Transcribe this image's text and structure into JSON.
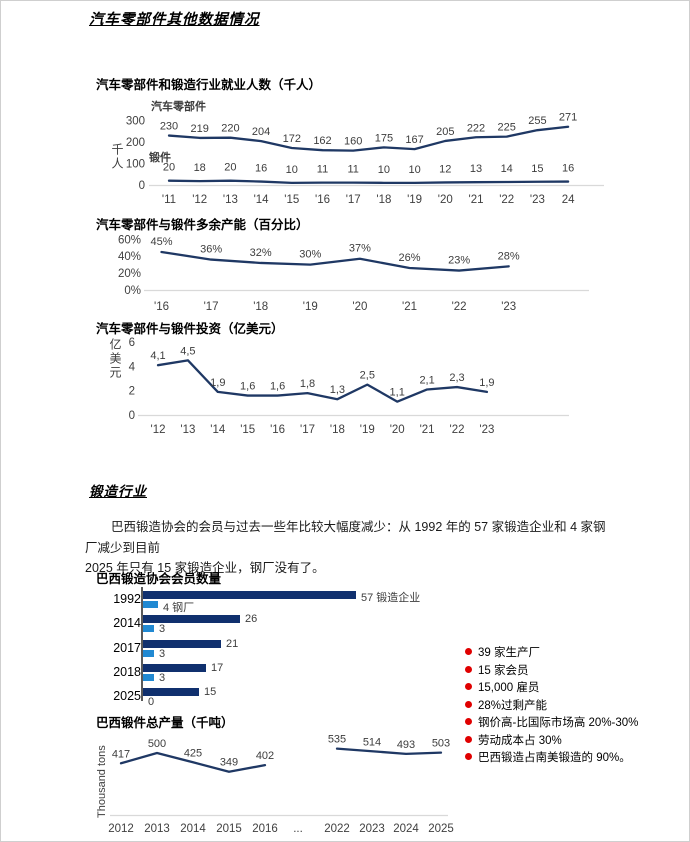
{
  "page": {
    "title": "汽车零部件其他数据情况",
    "section2_heading": "锻造行业",
    "paragraph_line1": "巴西锻造协会的会员与过去一些年比较大幅度减少：从 1992 年的 57 家锻造企业和 4 家钢厂减少到目前",
    "paragraph_line2": "2025 年只有 15 家锻造企业，钢厂没有了。"
  },
  "colors": {
    "line": "#1f3864",
    "bar_dark": "#10306e",
    "bar_light": "#2189d2",
    "bullet": "#e00000",
    "axis": "#d9d9d9",
    "tick_text": "#404040",
    "label_text": "#3d3d3d"
  },
  "chart_data": [
    {
      "id": "employment",
      "type": "line",
      "title": "汽车零部件和锻造行业就业人数（千人）",
      "ylabel": "千人",
      "xlabel": "",
      "ylim": [
        0,
        300
      ],
      "grid": false,
      "legend_position": "inline-above-lines",
      "yticks": [
        "300",
        "200",
        "100",
        "0"
      ],
      "x": [
        "'11",
        "'12",
        "'13",
        "'14",
        "'15",
        "'16",
        "'17",
        "'18",
        "'19",
        "'20",
        "'21",
        "'22",
        "'23",
        "24"
      ],
      "series": [
        {
          "name": "汽车零部件",
          "values": [
            230,
            219,
            220,
            204,
            172,
            162,
            160,
            175,
            167,
            205,
            222,
            225,
            255,
            271
          ],
          "labels": [
            "230",
            "219",
            "220",
            "204",
            "172",
            "162",
            "160",
            "175",
            "167",
            "205",
            "222",
            "225",
            "255",
            "271"
          ]
        },
        {
          "name": "锻件",
          "values": [
            20,
            18,
            20,
            16,
            10,
            11,
            11,
            10,
            10,
            12,
            13,
            14,
            15,
            16
          ],
          "labels": [
            "20",
            "18",
            "20",
            "16",
            "10",
            "11",
            "11",
            "10",
            "10",
            "12",
            "13",
            "14",
            "15",
            "16"
          ]
        }
      ]
    },
    {
      "id": "capacity",
      "type": "line",
      "title": "汽车零部件与锻件多余产能（百分比）",
      "ylabel": "",
      "xlabel": "",
      "ylim": [
        0,
        60
      ],
      "grid": false,
      "yticks": [
        "60%",
        "40%",
        "20%",
        "0%"
      ],
      "x": [
        "'16",
        "'17",
        "'18",
        "'19",
        "'20",
        "'21",
        "'22",
        "'23"
      ],
      "series": [
        {
          "name": "多余产能",
          "values": [
            45,
            36,
            32,
            30,
            37,
            26,
            23,
            28
          ],
          "labels": [
            "45%",
            "36%",
            "32%",
            "30%",
            "37%",
            "26%",
            "23%",
            "28%"
          ]
        }
      ]
    },
    {
      "id": "investment",
      "type": "line",
      "title": "汽车零部件与锻件投资（亿美元）",
      "ylabel": "亿美元",
      "xlabel": "",
      "ylim": [
        0,
        6
      ],
      "grid": false,
      "yticks": [
        "6",
        "4",
        "2",
        "0"
      ],
      "x": [
        "'12",
        "'13",
        "'14",
        "'15",
        "'16",
        "'17",
        "'18",
        "'19",
        "'20",
        "'21",
        "'22",
        "'23"
      ],
      "series": [
        {
          "name": "投资",
          "values": [
            4.1,
            4.5,
            1.9,
            1.6,
            1.6,
            1.8,
            1.3,
            2.5,
            1.1,
            2.1,
            2.3,
            1.9
          ],
          "labels": [
            "4,1",
            "4,5",
            "1,9",
            "1,6",
            "1,6",
            "1,8",
            "1,3",
            "2,5",
            "1,1",
            "2,1",
            "2,3",
            "1,9"
          ]
        }
      ]
    },
    {
      "id": "members",
      "type": "bar",
      "title": "巴西锻造协会会员数量",
      "orientation": "horizontal",
      "categories": [
        "1992",
        "2014",
        "2017",
        "2018",
        "2025"
      ],
      "series": [
        {
          "name": "锻造企业",
          "color_key": "bar_dark",
          "values": [
            57,
            26,
            21,
            17,
            15
          ],
          "labels": [
            "57 锻造企业",
            "26",
            "21",
            "17",
            "15"
          ]
        },
        {
          "name": "钢厂",
          "color_key": "bar_light",
          "values": [
            4,
            3,
            3,
            3,
            0
          ],
          "labels": [
            "4 钢厂",
            "3",
            "3",
            "3",
            "0"
          ]
        }
      ]
    },
    {
      "id": "production",
      "type": "line",
      "title": "巴西锻件总产量（千吨）",
      "ylabel": "Thousand tons",
      "xlabel": "",
      "ylim": [
        0,
        600
      ],
      "grid": false,
      "yticks": [],
      "x": [
        "2012",
        "2013",
        "2014",
        "2015",
        "2016",
        "...",
        "2022",
        "2023",
        "2024",
        "2025"
      ],
      "series": [
        {
          "name": "总产量",
          "values": [
            417,
            500,
            425,
            349,
            402,
            null,
            535,
            514,
            493,
            503
          ],
          "labels": [
            "417",
            "500",
            "425",
            "349",
            "402",
            "",
            "535",
            "514",
            "493",
            "503"
          ]
        }
      ]
    }
  ],
  "bullets": {
    "items": [
      "39 家生产厂",
      "15 家会员",
      "15,000 雇员",
      "28%过剩产能",
      "钢价高-比国际市场高 20%-30%",
      "劳动成本占 30%",
      "巴西锻造占南美锻造的 90%。"
    ]
  }
}
